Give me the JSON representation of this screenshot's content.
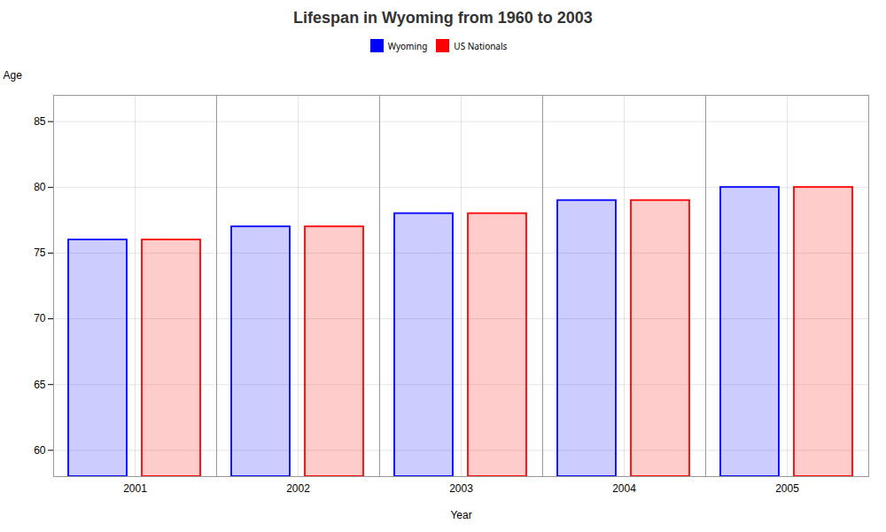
{
  "chart_data": {
    "type": "bar",
    "title": "Lifespan in Wyoming from 1960 to 2003",
    "xlabel": "Year",
    "ylabel": "Age",
    "categories": [
      "2001",
      "2002",
      "2003",
      "2004",
      "2005"
    ],
    "series": [
      {
        "name": "Wyoming",
        "color": "#0000ff",
        "values": [
          76,
          77,
          78,
          79,
          80
        ]
      },
      {
        "name": "US Nationals",
        "color": "#ff0000",
        "values": [
          76,
          77,
          78,
          79,
          80
        ]
      }
    ],
    "ylim": [
      58,
      87
    ],
    "yticks": [
      60,
      65,
      70,
      75,
      80,
      85
    ],
    "grid": true,
    "legend": "top"
  }
}
